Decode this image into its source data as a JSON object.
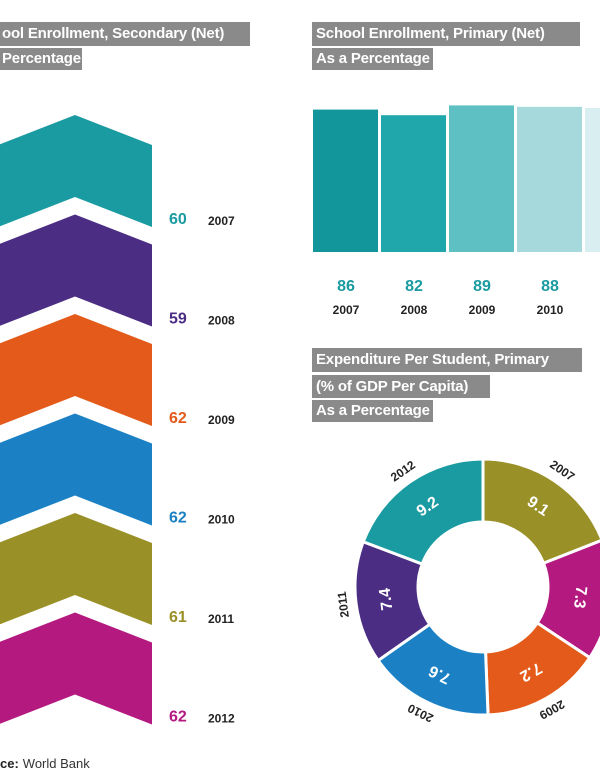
{
  "chart_data": [
    {
      "type": "chevron",
      "title": "ool Enrollment, Secondary (Net)",
      "subtitle": "Percentage",
      "categories": [
        "2007",
        "2008",
        "2009",
        "2010",
        "2011",
        "2012"
      ],
      "values": [
        60,
        59,
        62,
        62,
        61,
        62
      ],
      "colors": [
        "#1a9ba1",
        "#4b2d84",
        "#e35a1a",
        "#1b81c4",
        "#9a9028",
        "#b3197f"
      ]
    },
    {
      "type": "bar",
      "title": "School Enrollment, Primary (Net)",
      "subtitle": "As a Percentage",
      "categories": [
        "2007",
        "2008",
        "2009",
        "2010"
      ],
      "values": [
        86,
        82,
        89,
        88
      ],
      "colors": [
        "#12969c",
        "#20a7ac",
        "#5fc0c4",
        "#a5d9db"
      ],
      "label_color": "#1a9ba1"
    },
    {
      "type": "donut",
      "title": "Expenditure Per Student, Primary",
      "subtitles": [
        "(% of GDP Per Capita)",
        "As a Percentage"
      ],
      "categories": [
        "2007",
        "2008",
        "2009",
        "2010",
        "2011",
        "2012"
      ],
      "values": [
        9.1,
        7.3,
        7.2,
        7.6,
        7.4,
        9.2
      ],
      "colors": [
        "#9a9028",
        "#b3197f",
        "#e35a1a",
        "#1b81c4",
        "#4b2d84",
        "#1a9ba1"
      ]
    }
  ],
  "source": {
    "label": "ce:",
    "text": "World Bank"
  }
}
